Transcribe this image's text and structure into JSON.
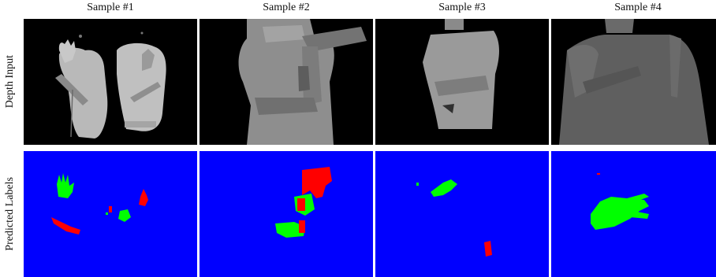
{
  "columns": [
    "Sample #1",
    "Sample #2",
    "Sample #3",
    "Sample #4"
  ],
  "rows": [
    "Depth Input",
    "Predicted Labels"
  ],
  "colors": {
    "background_label": "#0000ff",
    "left_hand_label": "#00ff00",
    "right_hand_label": "#ff0000",
    "depth_background": "#000000"
  }
}
